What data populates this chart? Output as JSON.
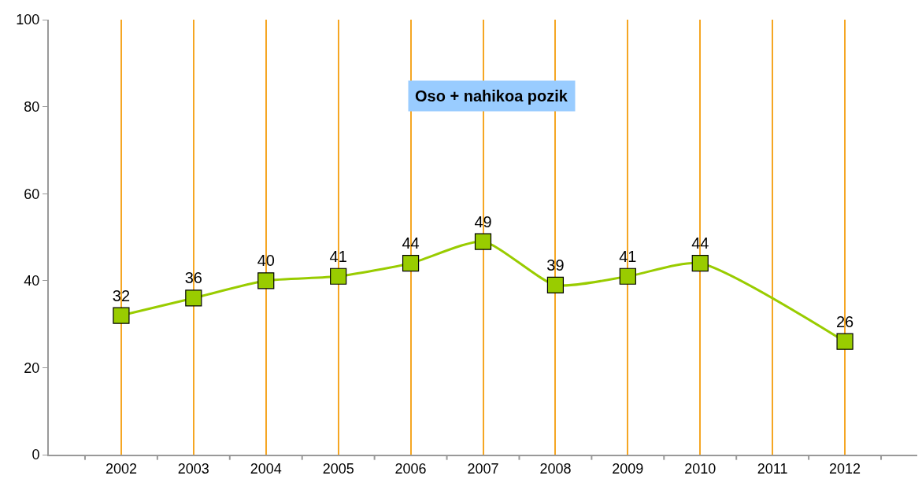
{
  "chart_data": {
    "type": "line",
    "title": "Oso + nahikoa pozik",
    "categories": [
      "2002",
      "2003",
      "2004",
      "2005",
      "2006",
      "2007",
      "2008",
      "2009",
      "2010",
      "2011",
      "2012"
    ],
    "series": [
      {
        "color": "#99cc00",
        "values": [
          32,
          36,
          40,
          41,
          44,
          49,
          39,
          41,
          44,
          null,
          26
        ]
      }
    ],
    "ylim": [
      0,
      100
    ],
    "yticks": [
      0,
      20,
      40,
      60,
      80,
      100
    ],
    "grid": "x",
    "marker": "square",
    "line_style": "solid",
    "data_labels": true,
    "legend": false
  }
}
